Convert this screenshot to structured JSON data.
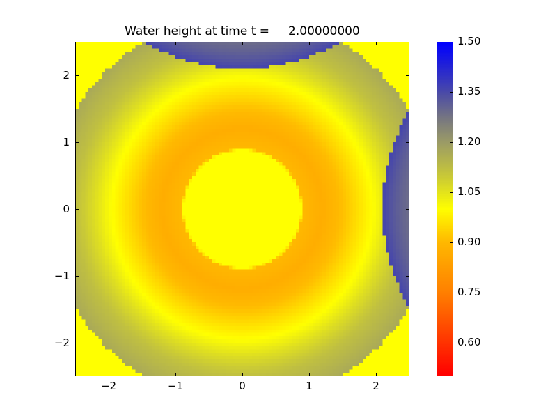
{
  "chart_data": {
    "type": "heatmap",
    "title": "Water height at time t =     2.00000000",
    "xlabel": "",
    "ylabel": "",
    "xlim": [
      -2.5,
      2.5
    ],
    "ylim": [
      -2.5,
      2.5
    ],
    "xticks": [
      -2,
      -1,
      0,
      1,
      2
    ],
    "yticks": [
      -2,
      -1,
      0,
      1,
      2
    ],
    "xtick_labels": [
      "−2",
      "−1",
      "0",
      "1",
      "2"
    ],
    "ytick_labels": [
      "−2",
      "−1",
      "0",
      "1",
      "2"
    ],
    "grid_resolution": 100,
    "background_value": 1.0,
    "radial_profile": [
      [
        0,
        1.0
      ],
      [
        0.88,
        1.0
      ],
      [
        0.9,
        0.9
      ],
      [
        1.2,
        0.87
      ],
      [
        1.5,
        0.91
      ],
      [
        1.8,
        0.97
      ],
      [
        1.95,
        1.0
      ],
      [
        2.2,
        1.06
      ],
      [
        2.5,
        1.12
      ],
      [
        2.9,
        1.17
      ]
    ],
    "wave_front_radius": 2.9,
    "reflections": [
      {
        "wall": "top",
        "mirror_center": [
          0,
          5
        ],
        "inner_value": 1.24,
        "edge_value": 1.36
      },
      {
        "wall": "right",
        "mirror_center": [
          5,
          0
        ],
        "inner_value": 1.24,
        "edge_value": 1.36
      }
    ],
    "colorbar": {
      "range": [
        0.5,
        1.5
      ],
      "ticks": [
        0.6,
        0.75,
        0.9,
        1.05,
        1.2,
        1.35,
        1.5
      ],
      "tick_labels": [
        "0.60",
        "0.75",
        "0.90",
        "1.05",
        "1.20",
        "1.35",
        "1.50"
      ],
      "colormap_stops": [
        [
          0.5,
          "#ff0000"
        ],
        [
          0.75,
          "#ff8000"
        ],
        [
          0.9,
          "#ffb800"
        ],
        [
          1.0,
          "#ffff00"
        ],
        [
          1.1,
          "#c8c838"
        ],
        [
          1.2,
          "#9c9c66"
        ],
        [
          1.27,
          "#787880"
        ],
        [
          1.35,
          "#4a4aa8"
        ],
        [
          1.5,
          "#0000ff"
        ]
      ]
    }
  }
}
